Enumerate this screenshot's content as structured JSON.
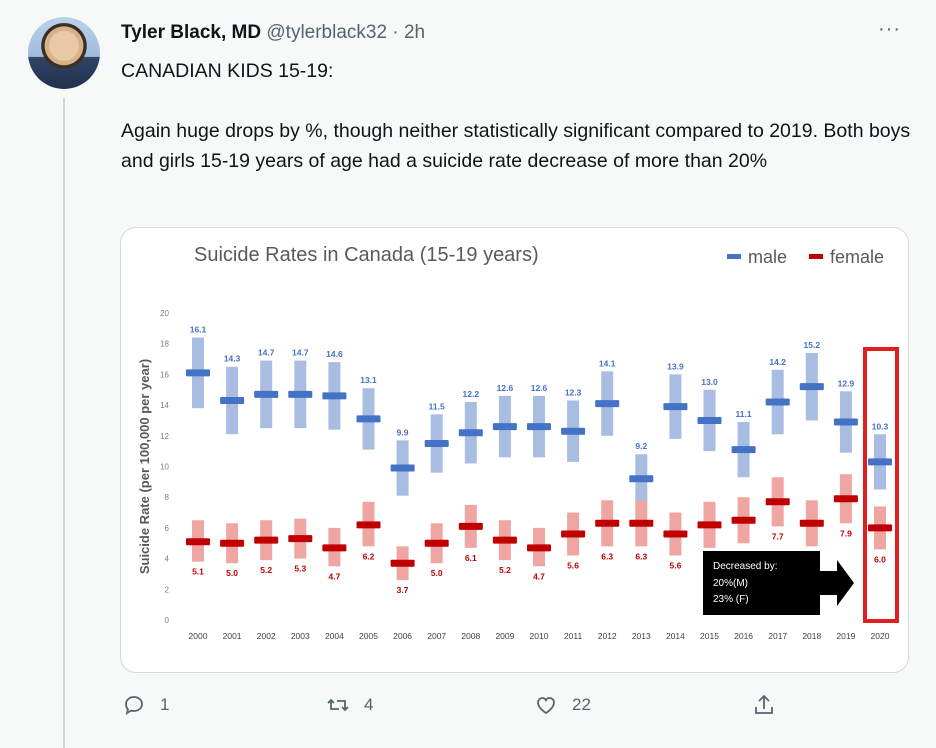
{
  "tweet": {
    "name": "Tyler Black, MD",
    "handle": "@tylerblack32",
    "separator": "·",
    "time": "2h",
    "more": "···",
    "text_line1": "CANADIAN KIDS 15-19:",
    "text_line2": "Again huge drops by %, though neither statistically significant compared to 2019. Both boys and girls 15-19 years of age had a suicide rate decrease of more than 20%"
  },
  "actions": {
    "reply_count": "1",
    "retweet_count": "4",
    "like_count": "22"
  },
  "icons": [
    "avatar",
    "more-icon",
    "reply-icon",
    "retweet-icon",
    "like-icon",
    "share-icon"
  ],
  "colors": {
    "male": "#4472c4",
    "male_ci": "#a9bde3",
    "female": "#c00000",
    "female_ci": "#efa6a3",
    "highlight": "#e02020"
  },
  "chart_data": {
    "type": "scatter",
    "title": "Suicide Rates in Canada (15-19 years)",
    "ylabel": "Suicide Rate (per 100,000 per year)",
    "xlabel": "",
    "ylim": [
      0,
      20
    ],
    "yticks": [
      0,
      2,
      4,
      6,
      8,
      10,
      12,
      14,
      16,
      18,
      20
    ],
    "grid": false,
    "legend_position": "top-right",
    "categories": [
      "2000",
      "2001",
      "2002",
      "2003",
      "2004",
      "2005",
      "2006",
      "2007",
      "2008",
      "2009",
      "2010",
      "2011",
      "2012",
      "2013",
      "2014",
      "2015",
      "2016",
      "2017",
      "2018",
      "2019",
      "2020"
    ],
    "series": [
      {
        "name": "male",
        "values": [
          16.1,
          14.3,
          14.7,
          14.7,
          14.6,
          13.1,
          9.9,
          11.5,
          12.2,
          12.6,
          12.6,
          12.3,
          14.1,
          9.2,
          13.9,
          13.0,
          11.1,
          14.2,
          15.2,
          12.9,
          10.3
        ],
        "labels": [
          "16.1",
          "14.3",
          "14.7",
          "14.7",
          "14.6",
          "13.1",
          "9.9",
          "11.5",
          "12.2",
          "12.6",
          "12.6",
          "12.3",
          "14.1",
          "9.2",
          "13.9",
          "13.0",
          "11.1",
          "14.2",
          "15.2",
          "12.9",
          "10.3"
        ],
        "ci_low": [
          13.8,
          12.1,
          12.5,
          12.5,
          12.4,
          11.1,
          8.1,
          9.6,
          10.2,
          10.6,
          10.6,
          10.3,
          12.0,
          7.6,
          11.8,
          11.0,
          9.3,
          12.1,
          13.0,
          10.9,
          8.5
        ],
        "ci_high": [
          18.4,
          16.5,
          16.9,
          16.9,
          16.8,
          15.1,
          11.7,
          13.4,
          14.2,
          14.6,
          14.6,
          14.3,
          16.2,
          10.8,
          16.0,
          15.0,
          12.9,
          16.3,
          17.4,
          14.9,
          12.1
        ]
      },
      {
        "name": "female",
        "values": [
          5.1,
          5.0,
          5.2,
          5.3,
          4.7,
          6.2,
          3.7,
          5.0,
          6.1,
          5.2,
          4.7,
          5.6,
          6.3,
          6.3,
          5.6,
          6.2,
          6.5,
          7.7,
          6.3,
          7.9,
          6.0
        ],
        "labels": [
          "5.1",
          "5.0",
          "5.2",
          "5.3",
          "4.7",
          "6.2",
          "3.7",
          "5.0",
          "6.1",
          "5.2",
          "4.7",
          "5.6",
          "6.3",
          "6.3",
          "5.6",
          "",
          "",
          "7.7",
          "",
          "7.9",
          "6.0"
        ],
        "ci_low": [
          3.8,
          3.7,
          3.9,
          4.0,
          3.5,
          4.8,
          2.6,
          3.7,
          4.7,
          3.9,
          3.5,
          4.2,
          4.8,
          4.8,
          4.2,
          4.7,
          5.0,
          6.1,
          4.8,
          6.3,
          4.6
        ],
        "ci_high": [
          6.5,
          6.3,
          6.5,
          6.6,
          6.0,
          7.7,
          4.8,
          6.3,
          7.5,
          6.5,
          6.0,
          7.0,
          7.8,
          7.8,
          7.0,
          7.7,
          8.0,
          9.3,
          7.8,
          9.5,
          7.4
        ]
      }
    ],
    "annotation": {
      "line1": "Decreased by:",
      "line2": "20%(M)",
      "line3": "23% (F)",
      "highlight_category": "2020"
    }
  }
}
